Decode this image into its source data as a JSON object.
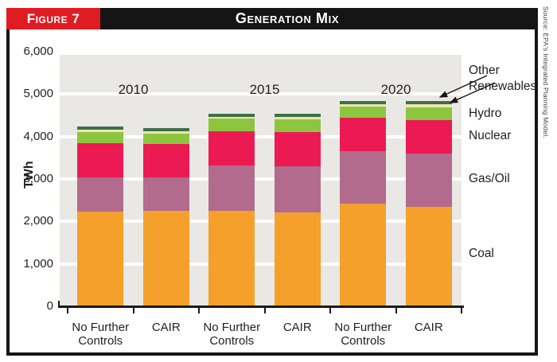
{
  "figure": {
    "label": "Figure 7",
    "title": "Generation Mix",
    "source": "Source: EPA's Integrated Planning Model.",
    "accent_red": "#E11B22",
    "bar_black": "#151515"
  },
  "chart_data": {
    "type": "bar",
    "stacked": true,
    "title": "Generation Mix",
    "ylabel": "TWh",
    "ylim": [
      0,
      6000
    ],
    "ytick_values": [
      0,
      1000,
      2000,
      3000,
      4000,
      5000,
      6000
    ],
    "ytick_labels": [
      "0",
      "1,000",
      "2,000",
      "3,000",
      "4,000",
      "5,000",
      "6,000"
    ],
    "groups": [
      "2010",
      "2015",
      "2020"
    ],
    "categories": [
      "No Further Controls",
      "CAIR",
      "No Further Controls",
      "CAIR",
      "No Further Controls",
      "CAIR"
    ],
    "series": [
      {
        "name": "Coal",
        "color": "#F5A02B",
        "values": [
          2240,
          2250,
          2250,
          2210,
          2410,
          2345
        ]
      },
      {
        "name": "Gas/Oil",
        "color": "#B26B8D",
        "values": [
          790,
          780,
          1060,
          1085,
          1250,
          1260
        ]
      },
      {
        "name": "Nuclear",
        "color": "#EC1A52",
        "values": [
          820,
          790,
          820,
          820,
          780,
          780
        ]
      },
      {
        "name": "Hydro",
        "color": "#8CC63F",
        "values": [
          250,
          250,
          300,
          300,
          265,
          300
        ]
      },
      {
        "name": "Other Renewables (tan band)",
        "color": "#EFE5AE",
        "values": [
          60,
          60,
          40,
          55,
          60,
          75
        ]
      },
      {
        "name": "Other Renewables (green band)",
        "color": "#3D7148",
        "values": [
          80,
          75,
          75,
          75,
          80,
          75
        ]
      }
    ],
    "legend_labels": [
      "Other Renewables",
      "Hydro",
      "Nuclear",
      "Gas/Oil",
      "Coal"
    ],
    "legend_position": "right",
    "grid": true,
    "grid_color": "#FFFFFF",
    "plot_bg": "#E9E8E5",
    "text_color": "#231F20"
  }
}
